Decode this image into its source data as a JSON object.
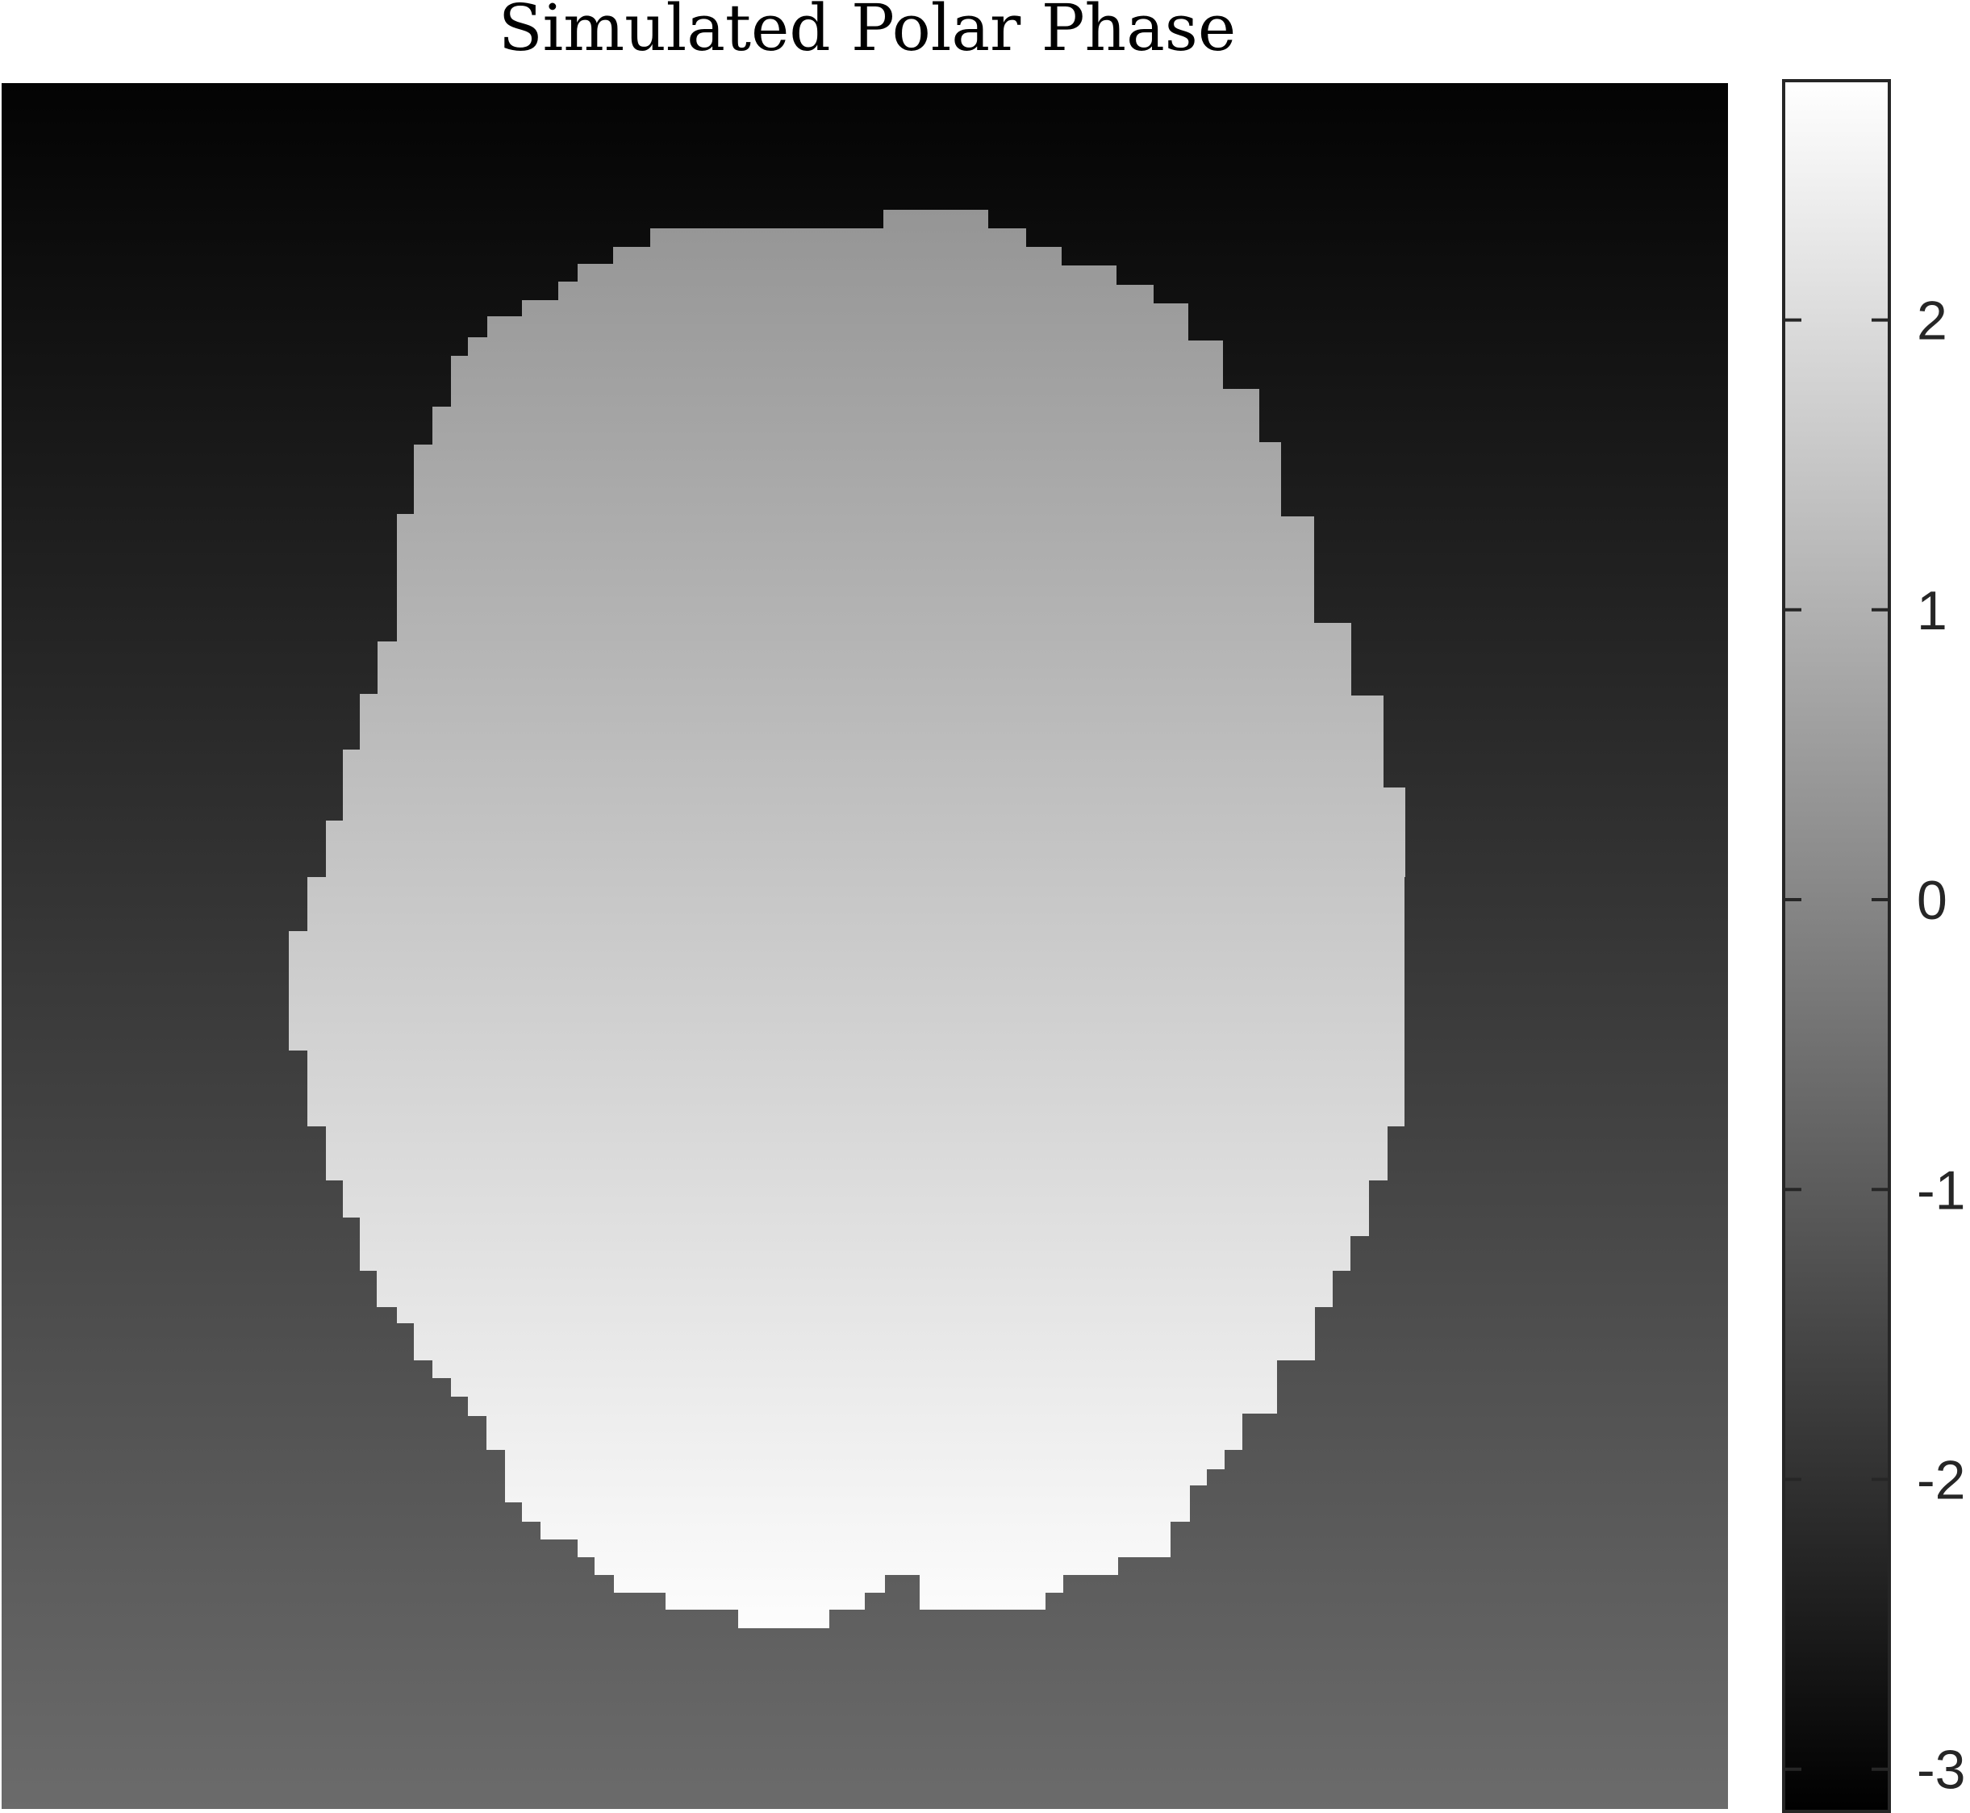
{
  "chart_data": {
    "type": "heatmap",
    "title": "Simulated Polar Phase",
    "colormap": "gray",
    "colorbar": {
      "range": [
        -3.14,
        2.82
      ],
      "ticks": [
        -3,
        -2,
        -1,
        0,
        1,
        2
      ],
      "tick_labels": [
        "-3",
        "-2",
        "-1",
        "0",
        "1",
        "2"
      ]
    },
    "image": {
      "grid_size": [
        96,
        96
      ],
      "background_phase_top": -3.08,
      "background_phase_bottom": -0.65,
      "object_phase_top": 0.35,
      "object_phase_bottom": 2.78,
      "object": "head-shaped region",
      "xticks": [],
      "yticks": []
    }
  }
}
